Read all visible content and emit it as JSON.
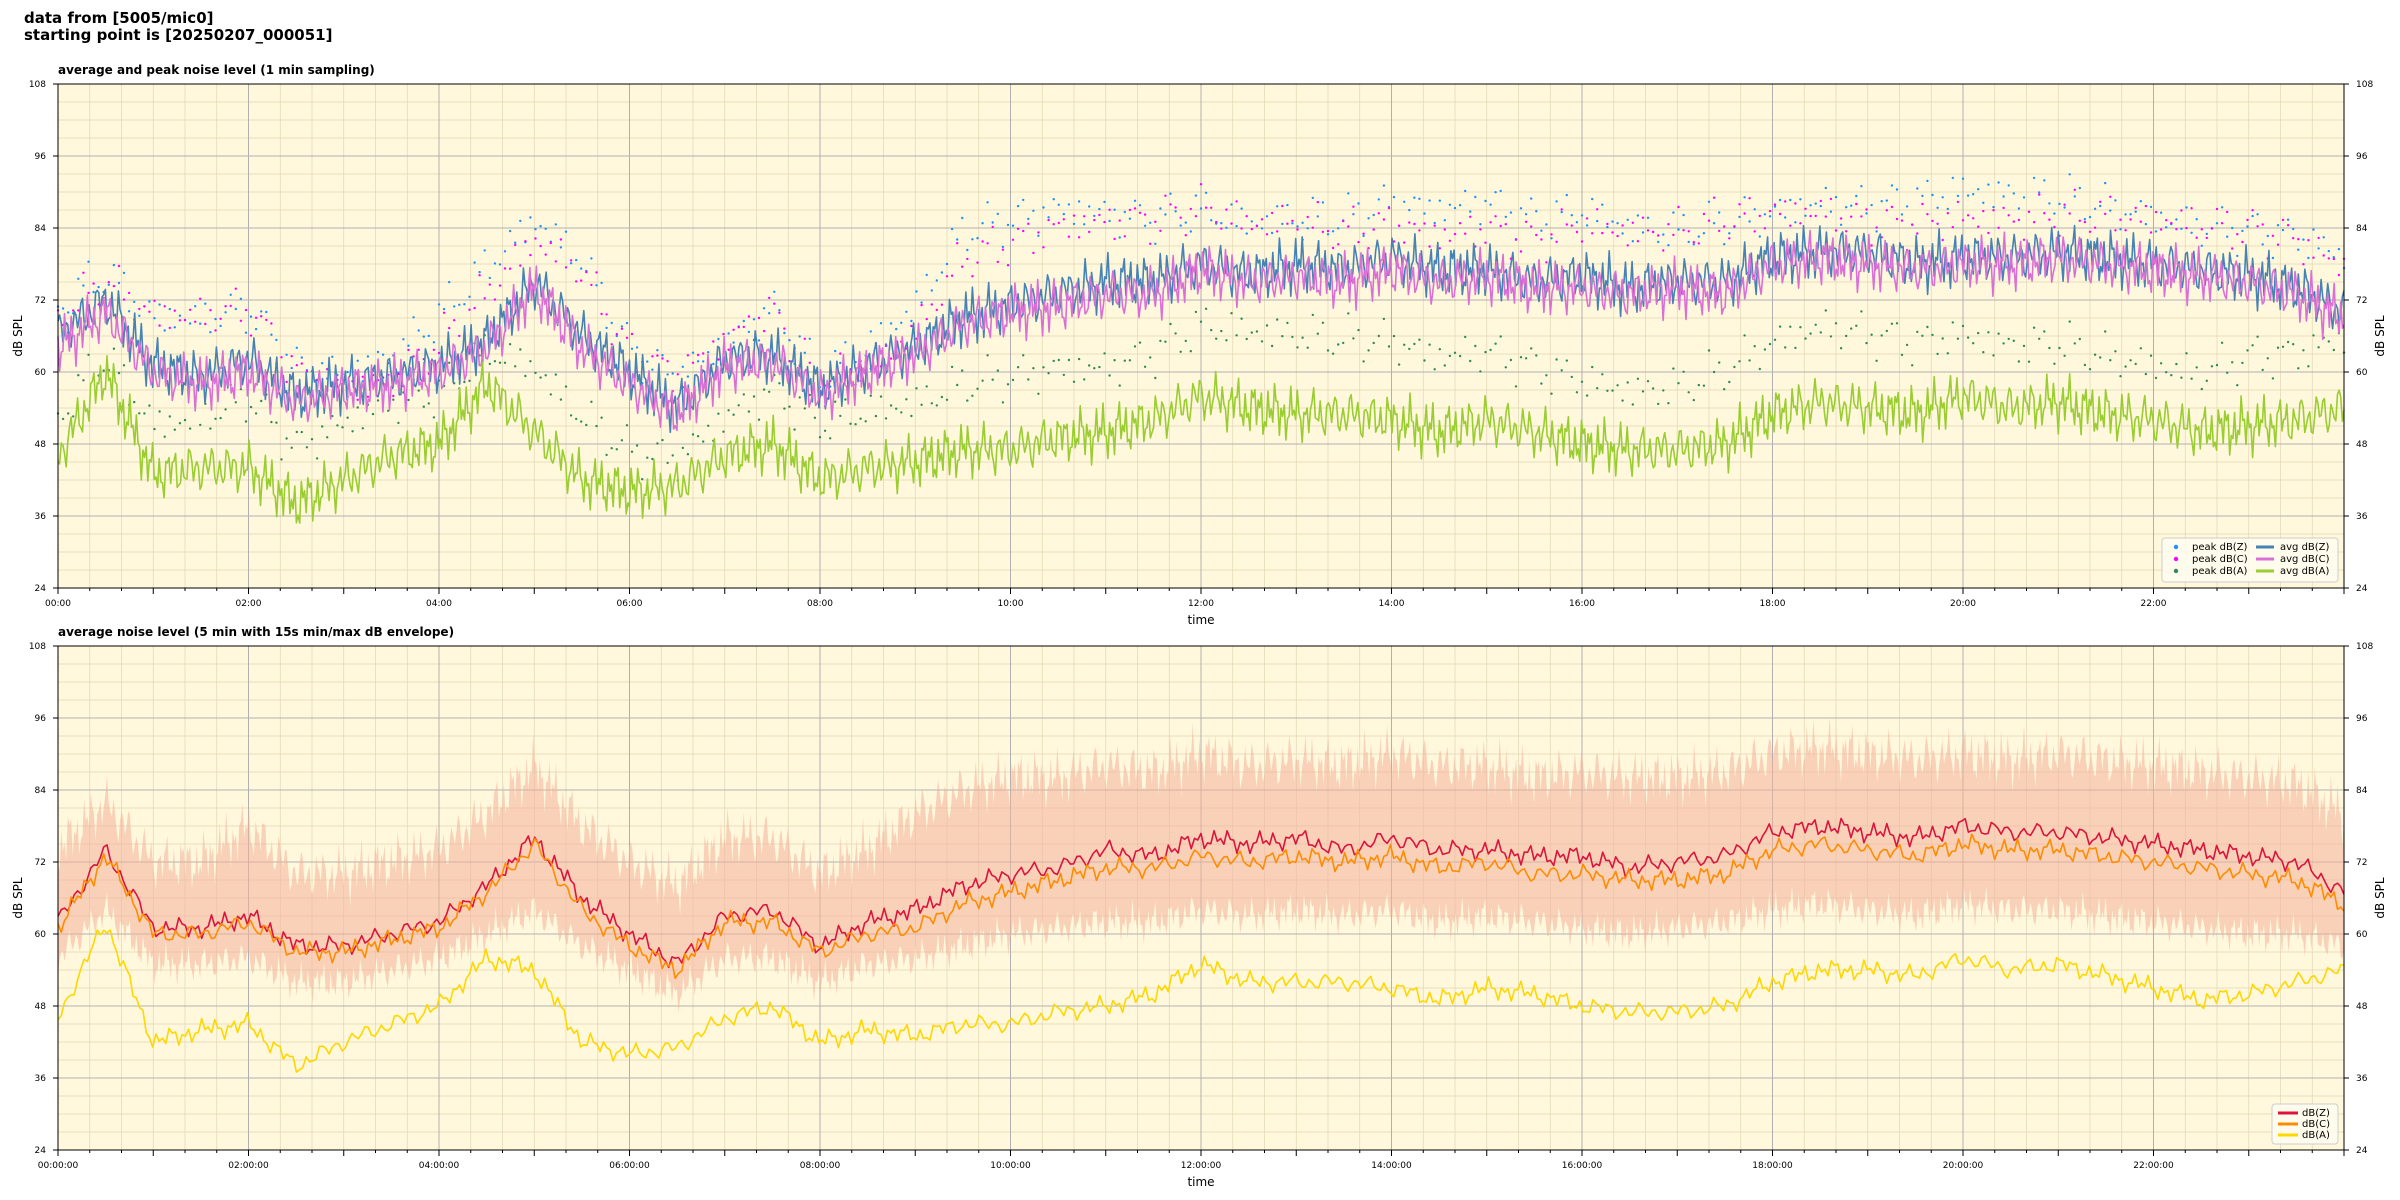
{
  "header": {
    "line1": "data from [5005/mic0]",
    "line2": "starting point is [20250207_000051]"
  },
  "colors": {
    "plot_bg": "#fff8dc",
    "grid_major": "#b0b0b0",
    "grid_minor": "#e2d6b4",
    "zc": "#4682b4",
    "cc": "#da70d6",
    "ac": "#9acd32",
    "peak_z": "#1e90ff",
    "peak_c": "#ff00ff",
    "peak_a": "#2e8b57",
    "env": "#f4b09a",
    "line_z": "#dc143c",
    "line_c": "#ff8c00",
    "line_a": "#ffd700"
  },
  "chart_data": [
    {
      "type": "line",
      "title": "average and peak noise level (1 min sampling)",
      "xlabel": "time",
      "ylabel": "dB SPL",
      "xlim": [
        0,
        24
      ],
      "ylim": [
        24,
        108
      ],
      "yticks": [
        24,
        36,
        48,
        60,
        72,
        84,
        96,
        108
      ],
      "xtick_labels": [
        "00:00",
        "02:00",
        "04:00",
        "06:00",
        "08:00",
        "10:00",
        "12:00",
        "14:00",
        "16:00",
        "18:00",
        "20:00",
        "22:00"
      ],
      "grid": true,
      "legend_position": "bottom-right",
      "x_hours": [
        0,
        0.5,
        1,
        1.5,
        2,
        2.5,
        3,
        3.5,
        4,
        4.5,
        5,
        5.5,
        6,
        6.5,
        7,
        7.5,
        8,
        8.5,
        9,
        9.5,
        10,
        10.5,
        11,
        11.5,
        12,
        12.5,
        13,
        13.5,
        14,
        14.5,
        15,
        15.5,
        16,
        16.5,
        17,
        17.5,
        18,
        18.5,
        19,
        19.5,
        20,
        20.5,
        21,
        21.5,
        22,
        22.5,
        23,
        23.5,
        24
      ],
      "series": [
        {
          "name": "avg dB(Z)",
          "style": "line",
          "color_key": "zc",
          "values": [
            66,
            72,
            61,
            59,
            62,
            56,
            58,
            59,
            61,
            65,
            75,
            66,
            60,
            54,
            62,
            63,
            57,
            61,
            64,
            69,
            71,
            73,
            75,
            75,
            78,
            76,
            78,
            77,
            79,
            77,
            77,
            75,
            76,
            74,
            75,
            75,
            79,
            80,
            80,
            78,
            79,
            79,
            80,
            79,
            78,
            77,
            76,
            74,
            70
          ]
        },
        {
          "name": "avg dB(C)",
          "style": "line",
          "color_key": "cc",
          "values": [
            64,
            70,
            60,
            58,
            60,
            55,
            57,
            58,
            60,
            64,
            74,
            64,
            58,
            53,
            61,
            62,
            56,
            60,
            63,
            68,
            70,
            71,
            73,
            73,
            77,
            75,
            76,
            75,
            77,
            75,
            76,
            74,
            74,
            73,
            74,
            73,
            78,
            79,
            78,
            77,
            78,
            78,
            79,
            78,
            77,
            76,
            75,
            73,
            69
          ]
        },
        {
          "name": "avg dB(A)",
          "style": "line",
          "color_key": "ac",
          "values": [
            46,
            60,
            43,
            44,
            44,
            38,
            42,
            46,
            48,
            58,
            50,
            42,
            40,
            41,
            46,
            48,
            42,
            44,
            45,
            47,
            47,
            49,
            50,
            52,
            56,
            54,
            53,
            53,
            52,
            50,
            52,
            50,
            48,
            47,
            47,
            48,
            53,
            55,
            54,
            53,
            56,
            54,
            55,
            53,
            52,
            50,
            51,
            52,
            54
          ]
        },
        {
          "name": "peak dB(Z)",
          "style": "scatter",
          "color_key": "peak_z",
          "values": [
            70,
            76,
            70,
            70,
            72,
            62,
            60,
            62,
            68,
            76,
            84,
            78,
            64,
            60,
            66,
            72,
            60,
            64,
            70,
            82,
            84,
            86,
            86,
            86,
            88,
            86,
            87,
            86,
            88,
            86,
            87,
            84,
            86,
            84,
            84,
            86,
            88,
            89,
            88,
            88,
            89,
            88,
            88,
            87,
            86,
            85,
            85,
            84,
            80
          ]
        },
        {
          "name": "peak dB(C)",
          "style": "scatter",
          "color_key": "peak_c",
          "values": [
            68,
            74,
            68,
            68,
            70,
            60,
            58,
            60,
            66,
            74,
            82,
            76,
            62,
            58,
            64,
            70,
            58,
            62,
            68,
            80,
            82,
            84,
            84,
            84,
            86,
            84,
            85,
            84,
            86,
            84,
            85,
            82,
            84,
            82,
            82,
            84,
            86,
            87,
            86,
            86,
            87,
            86,
            86,
            85,
            84,
            83,
            83,
            82,
            78
          ]
        },
        {
          "name": "peak dB(A)",
          "style": "scatter",
          "color_key": "peak_a",
          "values": [
            54,
            64,
            52,
            52,
            55,
            46,
            50,
            54,
            56,
            64,
            62,
            54,
            48,
            46,
            52,
            56,
            50,
            52,
            54,
            58,
            60,
            62,
            62,
            64,
            68,
            66,
            65,
            64,
            64,
            62,
            64,
            62,
            60,
            58,
            58,
            60,
            64,
            66,
            65,
            64,
            66,
            65,
            66,
            64,
            62,
            60,
            62,
            62,
            64
          ]
        }
      ],
      "legend": [
        "peak dB(Z)",
        "peak dB(C)",
        "peak dB(A)",
        "avg dB(Z)",
        "avg dB(C)",
        "avg dB(A)"
      ]
    },
    {
      "type": "line",
      "title": "average noise level (5 min with 15s min/max dB envelope)",
      "xlabel": "time",
      "ylabel": "dB SPL",
      "xlim": [
        0,
        24
      ],
      "ylim": [
        24,
        108
      ],
      "yticks": [
        24,
        36,
        48,
        60,
        72,
        84,
        96,
        108
      ],
      "xtick_labels": [
        "00:00:00",
        "02:00:00",
        "04:00:00",
        "06:00:00",
        "08:00:00",
        "10:00:00",
        "12:00:00",
        "14:00:00",
        "16:00:00",
        "18:00:00",
        "20:00:00",
        "22:00:00"
      ],
      "grid": true,
      "legend_position": "bottom-right",
      "x_hours": [
        0,
        0.5,
        1,
        1.5,
        2,
        2.5,
        3,
        3.5,
        4,
        4.5,
        5,
        5.5,
        6,
        6.5,
        7,
        7.5,
        8,
        8.5,
        9,
        9.5,
        10,
        10.5,
        11,
        11.5,
        12,
        12.5,
        13,
        13.5,
        14,
        14.5,
        15,
        15.5,
        16,
        16.5,
        17,
        17.5,
        18,
        18.5,
        19,
        19.5,
        20,
        20.5,
        21,
        21.5,
        22,
        22.5,
        23,
        23.5,
        24
      ],
      "series": [
        {
          "name": "dB(Z)",
          "color_key": "line_z",
          "values": [
            62,
            74,
            61,
            61,
            63,
            58,
            58,
            60,
            62,
            68,
            76,
            66,
            60,
            55,
            63,
            64,
            58,
            62,
            64,
            68,
            70,
            71,
            74,
            73,
            76,
            75,
            76,
            74,
            76,
            74,
            74,
            73,
            73,
            71,
            72,
            73,
            77,
            78,
            77,
            76,
            78,
            77,
            77,
            76,
            75,
            74,
            73,
            72,
            67
          ]
        },
        {
          "name": "dB(C)",
          "color_key": "line_c",
          "values": [
            61,
            73,
            60,
            60,
            62,
            57,
            57,
            59,
            61,
            67,
            75,
            64,
            58,
            54,
            62,
            62,
            57,
            60,
            61,
            65,
            67,
            69,
            71,
            71,
            73,
            72,
            73,
            72,
            73,
            71,
            72,
            70,
            70,
            69,
            69,
            70,
            74,
            75,
            74,
            73,
            75,
            74,
            74,
            73,
            72,
            71,
            70,
            69,
            65
          ]
        },
        {
          "name": "dB(A)",
          "color_key": "line_a",
          "values": [
            46,
            62,
            42,
            44,
            45,
            38,
            42,
            45,
            48,
            56,
            54,
            42,
            40,
            41,
            46,
            48,
            42,
            44,
            43,
            45,
            45,
            47,
            48,
            50,
            55,
            52,
            52,
            52,
            51,
            49,
            51,
            50,
            48,
            47,
            47,
            48,
            52,
            54,
            54,
            53,
            56,
            54,
            55,
            53,
            51,
            49,
            50,
            52,
            54
          ]
        }
      ],
      "envelope": {
        "color_key": "env",
        "upper": [
          74,
          82,
          72,
          72,
          78,
          70,
          70,
          72,
          74,
          80,
          88,
          78,
          72,
          68,
          76,
          76,
          70,
          74,
          80,
          84,
          86,
          86,
          88,
          87,
          90,
          88,
          89,
          88,
          90,
          88,
          88,
          86,
          87,
          86,
          86,
          87,
          90,
          91,
          90,
          89,
          90,
          89,
          90,
          89,
          88,
          87,
          86,
          85,
          80
        ],
        "lower": [
          56,
          64,
          55,
          55,
          56,
          52,
          52,
          54,
          56,
          60,
          64,
          58,
          54,
          50,
          56,
          56,
          52,
          55,
          56,
          58,
          60,
          61,
          62,
          62,
          64,
          63,
          64,
          63,
          64,
          62,
          63,
          62,
          61,
          60,
          61,
          62,
          64,
          65,
          64,
          63,
          65,
          64,
          64,
          63,
          62,
          61,
          60,
          60,
          58
        ]
      },
      "legend": [
        "dB(Z)",
        "dB(C)",
        "dB(A)"
      ]
    }
  ]
}
